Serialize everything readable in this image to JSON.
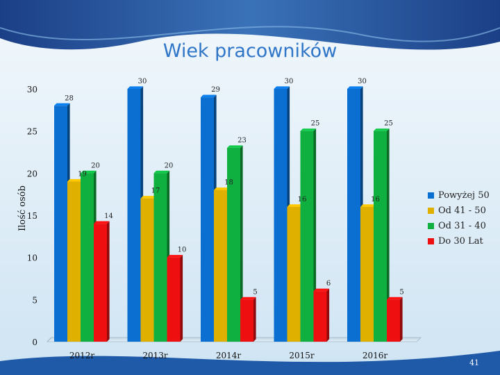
{
  "slide": {
    "page_number": "41"
  },
  "chart_data": {
    "type": "bar",
    "title": "Wiek pracowników",
    "ylabel": "Ilość osób",
    "xlabel": "",
    "ylim": [
      0,
      30
    ],
    "yticks": [
      "0",
      "5",
      "10",
      "15",
      "20",
      "25",
      "30"
    ],
    "categories": [
      "2012r",
      "2013r",
      "2014r",
      "2015r",
      "2016r"
    ],
    "series": [
      {
        "name": "Powyżej 50",
        "color": "#0a6fd0",
        "values": [
          28,
          30,
          29,
          30,
          30
        ]
      },
      {
        "name": "Od 41 - 50",
        "color": "#e0b000",
        "values": [
          19,
          17,
          18,
          16,
          16
        ]
      },
      {
        "name": "Od 31 - 40",
        "color": "#10b040",
        "values": [
          20,
          20,
          23,
          25,
          25
        ]
      },
      {
        "name": "Do 30 Lat",
        "color": "#ee1010",
        "values": [
          14,
          10,
          5,
          6,
          5
        ]
      }
    ],
    "grid": false,
    "legend_position": "right"
  }
}
